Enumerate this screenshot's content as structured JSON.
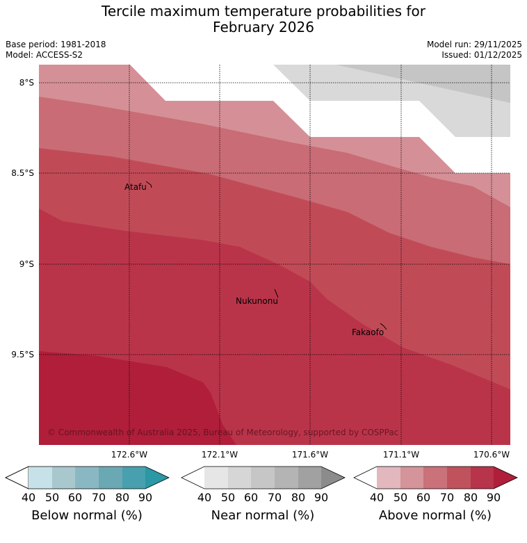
{
  "header": {
    "title_line1": "Tercile maximum temperature probabilities for",
    "title_line2": "February 2026",
    "base_period": "Base period: 1981-2018",
    "model": "Model: ACCESS-S2",
    "model_run": "Model run: 29/11/2025",
    "issued": "Issued: 01/12/2025"
  },
  "map": {
    "lat_labels": [
      "8°S",
      "8.5°S",
      "9°S",
      "9.5°S"
    ],
    "lon_labels": [
      "172.6°W",
      "172.1°W",
      "171.6°W",
      "171.1°W",
      "170.6°W"
    ],
    "places": [
      "Atafu",
      "Nukunonu",
      "Fakaofo"
    ],
    "copyright": "© Commonwealth of Australia 2025, Bureau of Meteorology, supported by COSPPac",
    "fill_colors": {
      "near_60": "#c5c5c5",
      "near_50": "#d9d9d9",
      "above_50": "#d59097",
      "above_60": "#c96c75",
      "above_70": "#c04b57",
      "above_80": "#ba3449",
      "above_90": "#b01e3a"
    }
  },
  "legends": [
    {
      "label": "Below normal (%)",
      "ticks": [
        "40",
        "50",
        "60",
        "70",
        "80",
        "90"
      ],
      "colors": [
        "#c6e2e8",
        "#a8c8cd",
        "#8ab8c2",
        "#6aa8b4",
        "#48a0ae",
        "#2a98a5"
      ]
    },
    {
      "label": "Near normal (%)",
      "ticks": [
        "40",
        "50",
        "60",
        "70",
        "80",
        "90"
      ],
      "colors": [
        "#e6e6e6",
        "#d6d6d6",
        "#c6c6c6",
        "#b4b4b4",
        "#a1a1a1",
        "#8c8c8c"
      ]
    },
    {
      "label": "Above normal (%)",
      "ticks": [
        "40",
        "50",
        "60",
        "70",
        "80",
        "90"
      ],
      "colors": [
        "#e2b7bd",
        "#d5939a",
        "#ca717a",
        "#c0525d",
        "#b7344a",
        "#b01e3a"
      ]
    }
  ]
}
